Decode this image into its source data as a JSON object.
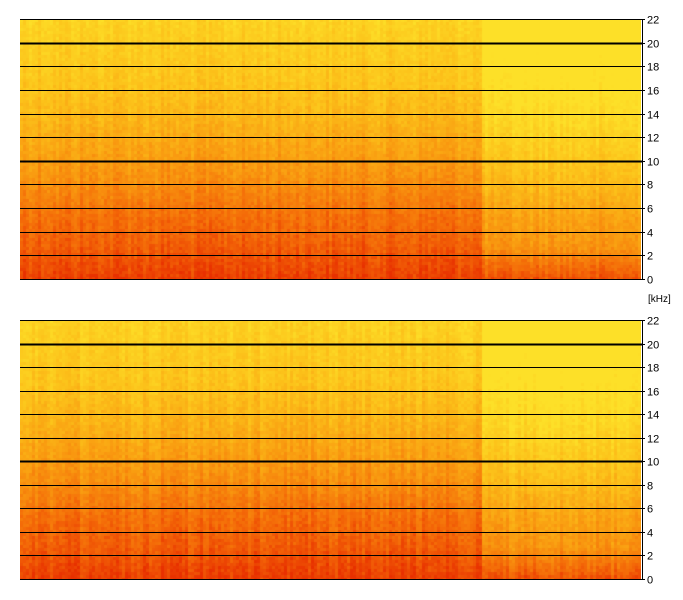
{
  "chart_data": [
    {
      "type": "heatmap",
      "kind": "spectrogram",
      "channel": "upper",
      "ylim": [
        0,
        22
      ],
      "y_ticks": [
        0,
        2,
        4,
        6,
        8,
        10,
        12,
        14,
        16,
        18,
        20,
        22
      ],
      "emphasized_gridlines": [
        10,
        20
      ],
      "grid": true,
      "x_axis_labels": false,
      "colormap": [
        "#e83000",
        "#f46a08",
        "#f99a10",
        "#fcc21a",
        "#fde028"
      ],
      "intensity_profile_by_frequency": [
        {
          "khz": 0,
          "level": 0.05
        },
        {
          "khz": 1,
          "level": 0.1
        },
        {
          "khz": 3,
          "level": 0.2
        },
        {
          "khz": 5.5,
          "level": 0.28
        },
        {
          "khz": 8,
          "level": 0.42
        },
        {
          "khz": 11,
          "level": 0.55
        },
        {
          "khz": 14,
          "level": 0.68
        },
        {
          "khz": 17,
          "level": 0.78
        },
        {
          "khz": 22,
          "level": 0.88
        }
      ],
      "quiet_section_start_fraction": 0.74,
      "quiet_section_level_boost": 0.28
    },
    {
      "type": "heatmap",
      "kind": "spectrogram",
      "channel": "lower",
      "ylim": [
        0,
        22
      ],
      "y_ticks": [
        0,
        2,
        4,
        6,
        8,
        10,
        12,
        14,
        16,
        18,
        20,
        22
      ],
      "emphasized_gridlines": [
        10,
        20
      ],
      "grid": true,
      "x_axis_labels": false,
      "colormap": [
        "#e83000",
        "#f46a08",
        "#f99a10",
        "#fcc21a",
        "#fde028"
      ],
      "intensity_profile_by_frequency": [
        {
          "khz": 0,
          "level": 0.05
        },
        {
          "khz": 1,
          "level": 0.1
        },
        {
          "khz": 3,
          "level": 0.2
        },
        {
          "khz": 5.5,
          "level": 0.28
        },
        {
          "khz": 8,
          "level": 0.42
        },
        {
          "khz": 11,
          "level": 0.55
        },
        {
          "khz": 14,
          "level": 0.68
        },
        {
          "khz": 17,
          "level": 0.78
        },
        {
          "khz": 22,
          "level": 0.88
        }
      ],
      "quiet_section_start_fraction": 0.74,
      "quiet_section_level_boost": 0.28
    }
  ],
  "unit_label": "[kHz]"
}
